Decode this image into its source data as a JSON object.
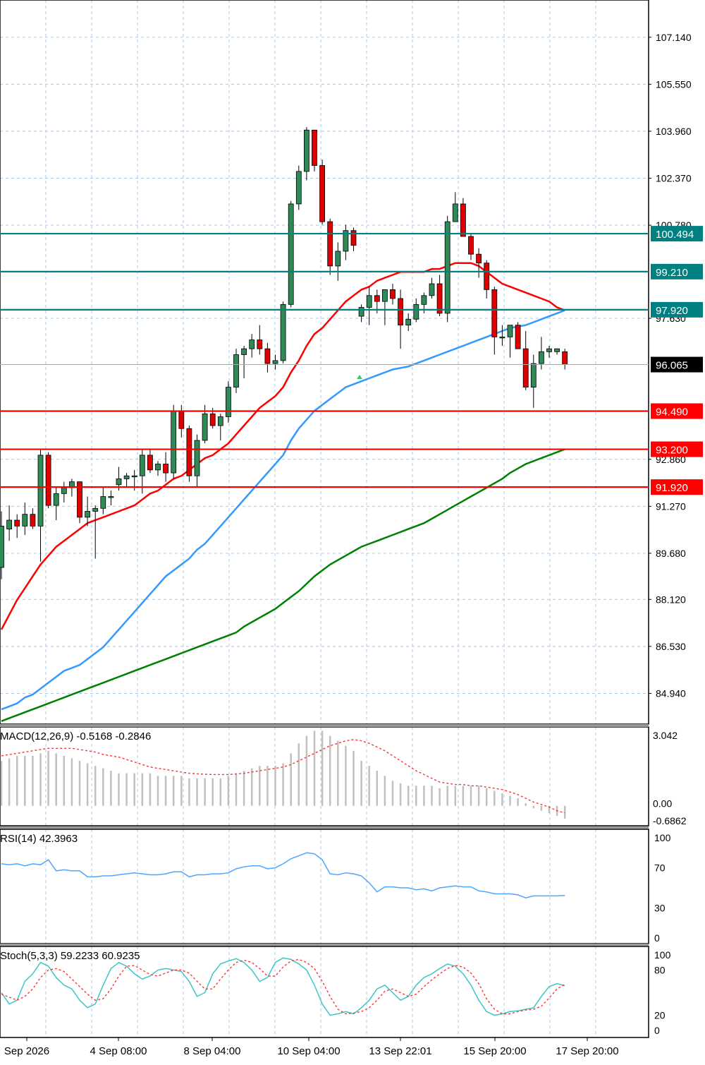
{
  "chart_data": {
    "type": "candlestick",
    "price_axis": {
      "ticks": [
        "107.140",
        "105.550",
        "103.960",
        "102.370",
        "100.780",
        "97.630",
        "92.860",
        "91.270",
        "89.680",
        "88.120",
        "86.530",
        "84.940"
      ],
      "range": [
        83.9,
        108.4
      ]
    },
    "time_axis": {
      "labels": [
        "Sep 2026",
        "4 Sep 08:00",
        "8 Sep 04:00",
        "10 Sep 04:00",
        "13 Sep 22:01",
        "15 Sep 20:00",
        "17 Sep 20:00"
      ]
    },
    "current_price": {
      "label": "96.065",
      "value": 96.065
    },
    "resistance_levels": [
      {
        "label": "100.494",
        "value": 100.494,
        "color": "#008080"
      },
      {
        "label": "99.210",
        "value": 99.21,
        "color": "#008080"
      },
      {
        "label": "97.920",
        "value": 97.92,
        "color": "#008080"
      }
    ],
    "support_levels": [
      {
        "label": "94.490",
        "value": 94.49,
        "color": "#ff0000"
      },
      {
        "label": "93.200",
        "value": 93.2,
        "color": "#ff0000"
      },
      {
        "label": "91.920",
        "value": 91.92,
        "color": "#ff0000"
      }
    ],
    "candles": [
      [
        89.2,
        91.1,
        88.8,
        90.6
      ],
      [
        90.5,
        91.3,
        90.1,
        90.8
      ],
      [
        90.8,
        91.0,
        90.2,
        90.6
      ],
      [
        90.6,
        91.4,
        90.3,
        91.0
      ],
      [
        91.0,
        91.2,
        90.5,
        90.6
      ],
      [
        90.6,
        93.2,
        89.4,
        93.0
      ],
      [
        93.0,
        93.1,
        91.2,
        91.3
      ],
      [
        91.3,
        91.9,
        90.8,
        91.7
      ],
      [
        91.7,
        92.1,
        91.4,
        91.9
      ],
      [
        91.9,
        92.2,
        91.6,
        92.1
      ],
      [
        92.1,
        92.1,
        90.7,
        90.9
      ],
      [
        90.9,
        91.6,
        90.6,
        91.1
      ],
      [
        91.1,
        91.3,
        89.5,
        91.2
      ],
      [
        91.2,
        91.9,
        91.0,
        91.6
      ],
      [
        91.6,
        91.8,
        91.3,
        91.6
      ],
      [
        92.0,
        92.6,
        91.8,
        92.2
      ],
      [
        92.2,
        92.4,
        91.9,
        92.3
      ],
      [
        92.3,
        92.5,
        91.8,
        92.3
      ],
      [
        92.3,
        93.2,
        91.7,
        93.0
      ],
      [
        93.0,
        93.2,
        92.4,
        92.5
      ],
      [
        92.5,
        92.8,
        92.3,
        92.7
      ],
      [
        92.7,
        93.1,
        92.1,
        92.4
      ],
      [
        92.4,
        94.7,
        92.2,
        94.5
      ],
      [
        94.5,
        94.7,
        93.6,
        93.9
      ],
      [
        93.9,
        94.0,
        92.1,
        92.3
      ],
      [
        92.3,
        93.7,
        91.9,
        93.5
      ],
      [
        93.5,
        94.7,
        93.4,
        94.4
      ],
      [
        94.4,
        94.6,
        93.9,
        94.0
      ],
      [
        94.0,
        94.4,
        93.5,
        94.3
      ],
      [
        94.3,
        95.5,
        94.1,
        95.3
      ],
      [
        95.3,
        96.6,
        95.1,
        96.4
      ],
      [
        96.4,
        96.7,
        95.6,
        96.6
      ],
      [
        96.6,
        97.1,
        96.3,
        96.9
      ],
      [
        96.9,
        97.4,
        96.4,
        96.6
      ],
      [
        96.6,
        96.8,
        95.8,
        96.1
      ],
      [
        96.1,
        96.4,
        95.9,
        96.2
      ],
      [
        96.2,
        98.2,
        96.1,
        98.1
      ],
      [
        98.1,
        101.6,
        98.0,
        101.5
      ],
      [
        101.5,
        102.8,
        101.3,
        102.6
      ],
      [
        102.6,
        104.1,
        102.3,
        104.0
      ],
      [
        104.0,
        104.0,
        102.6,
        102.8
      ],
      [
        102.8,
        103.0,
        100.8,
        100.9
      ],
      [
        100.9,
        101.0,
        99.1,
        99.4
      ],
      [
        99.4,
        100.2,
        98.9,
        99.9
      ],
      [
        99.9,
        100.8,
        99.6,
        100.6
      ],
      [
        100.6,
        100.7,
        99.9,
        100.1
      ],
      [
        97.7,
        98.1,
        97.5,
        98.0
      ],
      [
        98.0,
        98.7,
        97.4,
        98.4
      ],
      [
        98.4,
        98.6,
        97.8,
        98.2
      ],
      [
        98.2,
        98.6,
        97.4,
        98.6
      ],
      [
        98.6,
        98.8,
        98.1,
        98.3
      ],
      [
        98.3,
        98.6,
        96.6,
        97.4
      ],
      [
        97.4,
        97.8,
        97.2,
        97.6
      ],
      [
        97.6,
        98.3,
        97.5,
        98.1
      ],
      [
        98.1,
        98.5,
        97.8,
        98.4
      ],
      [
        98.4,
        99.0,
        98.3,
        98.8
      ],
      [
        98.8,
        99.1,
        97.7,
        97.8
      ],
      [
        97.8,
        101.1,
        97.5,
        100.9
      ],
      [
        100.9,
        101.9,
        100.9,
        101.5
      ],
      [
        101.5,
        101.7,
        100.5,
        100.4
      ],
      [
        100.4,
        100.5,
        99.6,
        99.8
      ],
      [
        99.8,
        100.0,
        99.0,
        99.5
      ],
      [
        99.5,
        99.6,
        98.3,
        98.6
      ],
      [
        98.6,
        98.7,
        96.4,
        97.0
      ],
      [
        97.0,
        97.4,
        96.7,
        97.0
      ],
      [
        97.0,
        97.4,
        96.3,
        97.4
      ],
      [
        97.4,
        97.5,
        96.7,
        96.6
      ],
      [
        96.6,
        97.2,
        95.2,
        95.3
      ],
      [
        95.3,
        96.4,
        94.6,
        96.1
      ],
      [
        96.1,
        97.0,
        95.9,
        96.5
      ],
      [
        96.5,
        96.7,
        96.3,
        96.6
      ],
      [
        96.5,
        96.6,
        96.4,
        96.6
      ],
      [
        96.5,
        96.6,
        95.9,
        96.065
      ]
    ],
    "series": [
      {
        "role": "ma-fast",
        "color": "#ff0000",
        "values": [
          87.1,
          87.6,
          88.1,
          88.5,
          88.9,
          89.3,
          89.6,
          89.9,
          90.1,
          90.3,
          90.5,
          90.7,
          90.8,
          90.9,
          91.0,
          91.1,
          91.2,
          91.3,
          91.5,
          91.7,
          91.8,
          92.0,
          92.2,
          92.3,
          92.5,
          92.7,
          92.9,
          93.0,
          93.2,
          93.4,
          93.7,
          94.0,
          94.3,
          94.6,
          94.8,
          95.0,
          95.3,
          95.8,
          96.2,
          96.7,
          97.1,
          97.3,
          97.6,
          97.9,
          98.2,
          98.4,
          98.6,
          98.7,
          98.9,
          99.0,
          99.1,
          99.2,
          99.2,
          99.2,
          99.2,
          99.3,
          99.3,
          99.4,
          99.5,
          99.5,
          99.5,
          99.4,
          99.2,
          99.0,
          98.8,
          98.7,
          98.6,
          98.5,
          98.4,
          98.3,
          98.2,
          98.0,
          97.9
        ]
      },
      {
        "role": "ma-mid",
        "color": "#3399ff",
        "values": [
          84.4,
          84.5,
          84.6,
          84.8,
          84.9,
          85.1,
          85.3,
          85.5,
          85.7,
          85.8,
          85.9,
          86.1,
          86.3,
          86.5,
          86.8,
          87.1,
          87.4,
          87.7,
          88.0,
          88.3,
          88.6,
          88.9,
          89.1,
          89.3,
          89.5,
          89.8,
          90.0,
          90.3,
          90.6,
          90.9,
          91.2,
          91.5,
          91.8,
          92.1,
          92.4,
          92.7,
          93.0,
          93.5,
          93.9,
          94.2,
          94.5,
          94.7,
          94.9,
          95.1,
          95.3,
          95.4,
          95.5,
          95.6,
          95.7,
          95.8,
          95.9,
          95.95,
          96.0,
          96.1,
          96.2,
          96.3,
          96.4,
          96.5,
          96.6,
          96.7,
          96.8,
          96.9,
          97.0,
          97.1,
          97.2,
          97.3,
          97.35,
          97.4,
          97.5,
          97.6,
          97.7,
          97.8,
          97.9
        ]
      },
      {
        "role": "ma-slow",
        "color": "#008000",
        "values": [
          84.0,
          84.1,
          84.2,
          84.3,
          84.4,
          84.5,
          84.6,
          84.7,
          84.8,
          84.9,
          85.0,
          85.1,
          85.2,
          85.3,
          85.4,
          85.5,
          85.6,
          85.7,
          85.8,
          85.9,
          86.0,
          86.1,
          86.2,
          86.3,
          86.4,
          86.5,
          86.6,
          86.7,
          86.8,
          86.9,
          87.0,
          87.2,
          87.35,
          87.5,
          87.65,
          87.8,
          88.0,
          88.2,
          88.4,
          88.65,
          88.9,
          89.1,
          89.3,
          89.45,
          89.6,
          89.75,
          89.9,
          90.0,
          90.1,
          90.2,
          90.3,
          90.4,
          90.5,
          90.6,
          90.7,
          90.85,
          91.0,
          91.15,
          91.3,
          91.45,
          91.6,
          91.75,
          91.9,
          92.05,
          92.2,
          92.4,
          92.55,
          92.7,
          92.8,
          92.9,
          93.0,
          93.1,
          93.2
        ]
      }
    ],
    "macd": {
      "title": "MACD(12,26,9) -0.5168 -0.2846",
      "axis_labels": [
        "3.042",
        "0.00",
        "-0.6862"
      ],
      "range": [
        -0.6862,
        3.042
      ],
      "histogram": [
        1.8,
        1.9,
        2.0,
        2.0,
        2.0,
        2.1,
        2.2,
        2.1,
        2.0,
        1.9,
        1.8,
        1.7,
        1.6,
        1.5,
        1.4,
        1.3,
        1.3,
        1.3,
        1.3,
        1.3,
        1.2,
        1.2,
        1.2,
        1.2,
        1.1,
        1.1,
        1.1,
        1.1,
        1.1,
        1.2,
        1.3,
        1.4,
        1.5,
        1.6,
        1.6,
        1.6,
        1.7,
        2.1,
        2.5,
        2.8,
        3.0,
        3.0,
        2.8,
        2.6,
        2.4,
        2.2,
        1.8,
        1.6,
        1.4,
        1.2,
        1.0,
        0.9,
        0.8,
        0.8,
        0.8,
        0.8,
        0.7,
        0.8,
        0.8,
        0.8,
        0.8,
        0.8,
        0.7,
        0.6,
        0.5,
        0.4,
        0.3,
        0.1,
        -0.1,
        -0.2,
        -0.3,
        -0.4,
        -0.5168
      ],
      "signal": [
        2.0,
        2.05,
        2.1,
        2.15,
        2.2,
        2.25,
        2.3,
        2.3,
        2.3,
        2.3,
        2.25,
        2.2,
        2.15,
        2.05,
        2.0,
        1.95,
        1.85,
        1.75,
        1.65,
        1.55,
        1.5,
        1.45,
        1.4,
        1.35,
        1.3,
        1.28,
        1.26,
        1.25,
        1.25,
        1.25,
        1.27,
        1.3,
        1.35,
        1.4,
        1.45,
        1.5,
        1.55,
        1.65,
        1.8,
        1.95,
        2.1,
        2.25,
        2.4,
        2.5,
        2.6,
        2.65,
        2.6,
        2.5,
        2.35,
        2.2,
        2.0,
        1.8,
        1.6,
        1.4,
        1.25,
        1.1,
        0.95,
        0.9,
        0.85,
        0.85,
        0.8,
        0.8,
        0.75,
        0.7,
        0.65,
        0.55,
        0.45,
        0.3,
        0.15,
        0.05,
        -0.05,
        -0.2,
        -0.2846
      ]
    },
    "rsi": {
      "title": "RSI(14) 42.3963",
      "axis_labels": [
        "100",
        "70",
        "30",
        "0"
      ],
      "levels": [
        100,
        70,
        30,
        0
      ],
      "values": [
        74,
        73,
        74,
        72,
        74,
        73,
        78,
        67,
        68,
        67,
        67,
        61,
        61,
        62,
        62,
        63,
        64,
        65,
        64,
        63,
        63,
        64,
        66,
        66,
        61,
        63,
        63,
        64,
        64,
        65,
        69,
        71,
        72,
        72,
        69,
        70,
        74,
        79,
        82,
        85,
        84,
        78,
        64,
        63,
        65,
        64,
        62,
        55,
        46,
        51,
        51,
        50,
        50,
        48,
        49,
        47,
        50,
        51,
        52,
        51,
        51,
        47,
        46,
        44,
        44,
        44,
        43,
        40,
        42,
        42,
        42,
        42,
        42.3963
      ]
    },
    "stoch": {
      "title": "Stoch(5,3,3) 59.2233 60.9235",
      "axis_labels": [
        "100",
        "80",
        "20",
        "0"
      ],
      "levels": [
        100,
        80,
        20,
        0
      ],
      "k": [
        50,
        35,
        40,
        65,
        75,
        90,
        85,
        70,
        60,
        55,
        40,
        30,
        35,
        60,
        82,
        90,
        85,
        75,
        68,
        72,
        80,
        82,
        80,
        78,
        65,
        45,
        50,
        75,
        88,
        92,
        95,
        90,
        80,
        65,
        70,
        90,
        96,
        94,
        88,
        80,
        60,
        35,
        20,
        22,
        25,
        22,
        30,
        40,
        55,
        60,
        50,
        40,
        45,
        60,
        70,
        75,
        82,
        88,
        85,
        75,
        60,
        40,
        25,
        20,
        22,
        25,
        26,
        28,
        30,
        45,
        58,
        62,
        59.2233
      ],
      "d": [
        48,
        44,
        40,
        45,
        55,
        70,
        80,
        82,
        78,
        68,
        58,
        48,
        40,
        42,
        55,
        72,
        85,
        86,
        80,
        74,
        72,
        76,
        80,
        80,
        76,
        65,
        55,
        55,
        68,
        80,
        90,
        93,
        90,
        82,
        72,
        72,
        84,
        92,
        94,
        90,
        82,
        65,
        45,
        28,
        22,
        23,
        25,
        30,
        40,
        52,
        55,
        50,
        45,
        48,
        58,
        67,
        75,
        82,
        86,
        84,
        76,
        62,
        42,
        28,
        22,
        22,
        25,
        27,
        28,
        32,
        43,
        55,
        60.9235
      ]
    }
  },
  "colors": {
    "bull": "#2e8b57",
    "bear": "#e00000",
    "grid": "#a8c8e8",
    "macd_hist": "#c0c0c0",
    "macd_signal": "#ff3333",
    "rsi_line": "#4da6ff",
    "stoch_k": "#3cc6c6",
    "stoch_d": "#ff3333"
  }
}
